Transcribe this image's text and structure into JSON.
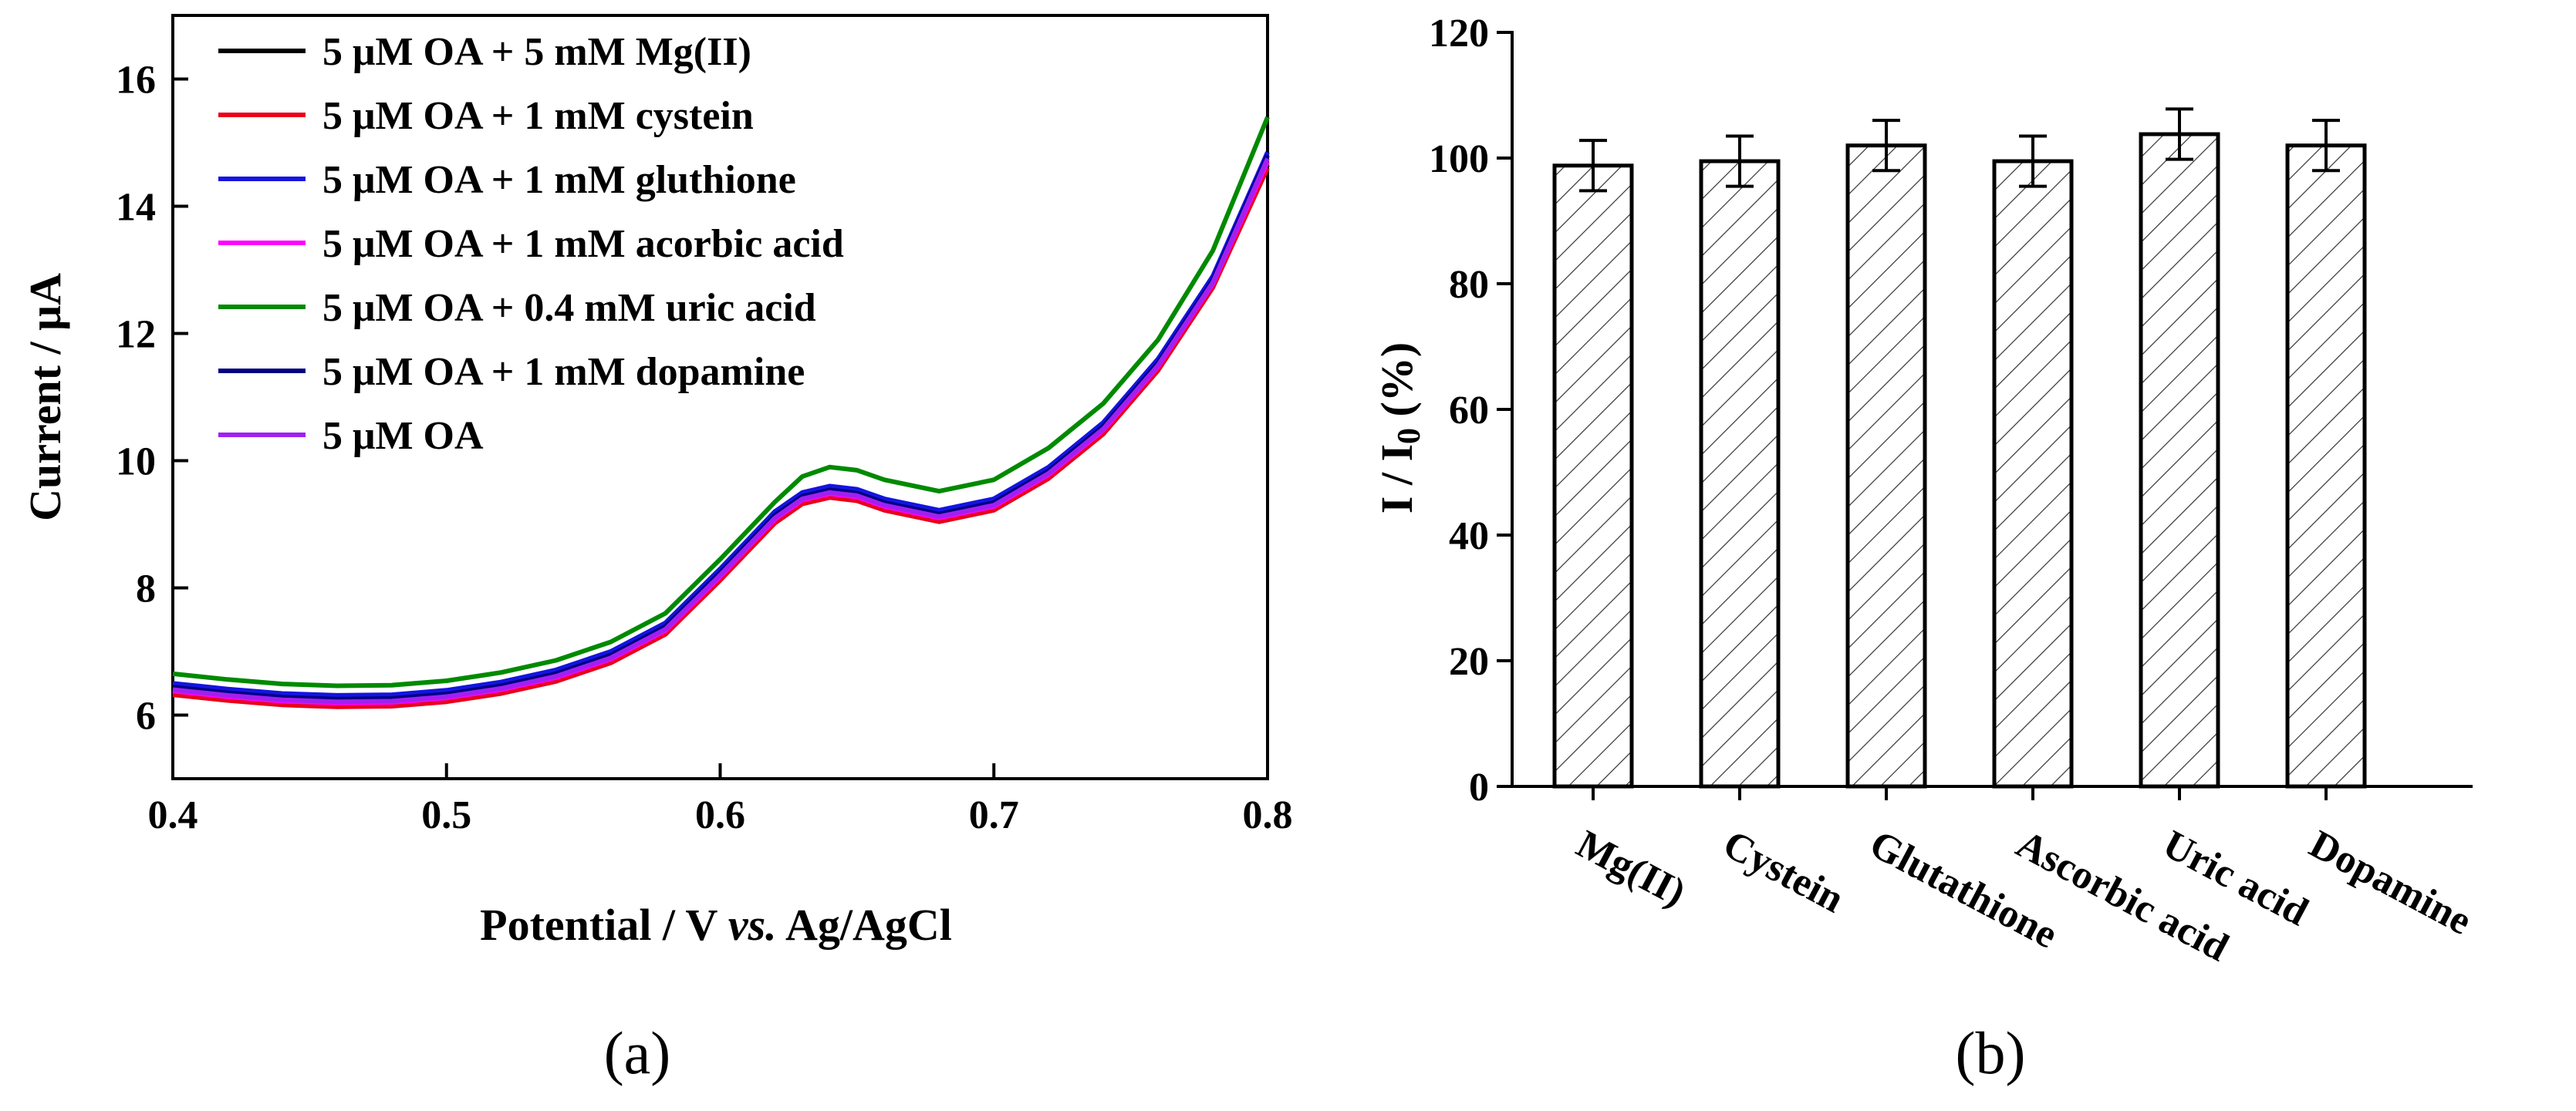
{
  "chart_data": [
    {
      "panel": "(a)",
      "type": "line",
      "xlabel_parts": [
        "Potential / V ",
        "vs.",
        " Ag/AgCl"
      ],
      "ylabel": "Current / μA",
      "xlim": [
        0.4,
        0.8
      ],
      "ylim": [
        5,
        17
      ],
      "xticks": [
        0.4,
        0.5,
        0.6,
        0.7,
        0.8
      ],
      "xtick_labels": [
        "0.4",
        "0.5",
        "0.6",
        "0.7",
        "0.8"
      ],
      "yticks": [
        6,
        8,
        10,
        12,
        14,
        16
      ],
      "ytick_labels": [
        "6",
        "8",
        "10",
        "12",
        "14",
        "16"
      ],
      "legend_position": "top-left",
      "x": [
        0.4,
        0.42,
        0.44,
        0.46,
        0.48,
        0.5,
        0.52,
        0.54,
        0.56,
        0.58,
        0.6,
        0.62,
        0.63,
        0.64,
        0.65,
        0.66,
        0.68,
        0.7,
        0.72,
        0.74,
        0.76,
        0.78,
        0.8
      ],
      "series": [
        {
          "name": "5 μM OA + 5 mM Mg(II)",
          "color": "#000000",
          "values": [
            6.35,
            6.26,
            6.19,
            6.16,
            6.17,
            6.24,
            6.37,
            6.56,
            6.85,
            7.3,
            8.15,
            9.05,
            9.35,
            9.45,
            9.4,
            9.25,
            9.07,
            9.25,
            9.75,
            10.45,
            11.45,
            12.75,
            14.65
          ]
        },
        {
          "name": "5 μM OA + 1 mM cystein",
          "color": "#e8001c",
          "values": [
            6.32,
            6.23,
            6.16,
            6.13,
            6.14,
            6.21,
            6.34,
            6.53,
            6.82,
            7.27,
            8.12,
            9.02,
            9.32,
            9.42,
            9.37,
            9.22,
            9.04,
            9.22,
            9.72,
            10.42,
            11.42,
            12.72,
            14.6
          ]
        },
        {
          "name": "5 μM OA + 1 mM gluthione",
          "color": "#1414e0",
          "values": [
            6.5,
            6.41,
            6.34,
            6.31,
            6.32,
            6.39,
            6.52,
            6.71,
            7.0,
            7.45,
            8.3,
            9.2,
            9.5,
            9.6,
            9.55,
            9.4,
            9.22,
            9.4,
            9.9,
            10.6,
            11.6,
            12.9,
            14.85
          ]
        },
        {
          "name": "5 μM OA + 1 mM acorbic acid",
          "color": "#ff00ff",
          "values": [
            6.38,
            6.29,
            6.22,
            6.19,
            6.2,
            6.27,
            6.4,
            6.59,
            6.88,
            7.33,
            8.18,
            9.08,
            9.38,
            9.48,
            9.43,
            9.28,
            9.1,
            9.28,
            9.78,
            10.48,
            11.48,
            12.78,
            14.7
          ]
        },
        {
          "name": "5 μM OA + 0.4 mM uric acid",
          "color": "#008a00",
          "values": [
            6.65,
            6.56,
            6.49,
            6.46,
            6.47,
            6.54,
            6.67,
            6.86,
            7.15,
            7.6,
            8.45,
            9.35,
            9.75,
            9.9,
            9.85,
            9.7,
            9.52,
            9.7,
            10.2,
            10.9,
            11.9,
            13.3,
            15.4
          ]
        },
        {
          "name": "5 μM OA + 1 mM dopamine",
          "color": "#000080",
          "values": [
            6.44,
            6.35,
            6.28,
            6.25,
            6.26,
            6.33,
            6.46,
            6.65,
            6.94,
            7.39,
            8.24,
            9.14,
            9.44,
            9.54,
            9.49,
            9.34,
            9.16,
            9.34,
            9.84,
            10.54,
            11.54,
            12.84,
            14.8
          ]
        },
        {
          "name": "5 μM OA",
          "color": "#a020f0",
          "values": [
            6.4,
            6.31,
            6.24,
            6.21,
            6.22,
            6.29,
            6.42,
            6.61,
            6.9,
            7.35,
            8.2,
            9.1,
            9.4,
            9.5,
            9.45,
            9.3,
            9.12,
            9.3,
            9.8,
            10.5,
            11.5,
            12.8,
            14.75
          ]
        }
      ]
    },
    {
      "panel": "(b)",
      "type": "bar",
      "ylabel_parts": [
        "I / I",
        "0",
        " (%)"
      ],
      "ylim": [
        0,
        120
      ],
      "yticks": [
        0,
        20,
        40,
        60,
        80,
        100,
        120
      ],
      "ytick_labels": [
        "0",
        "20",
        "40",
        "60",
        "80",
        "100",
        "120"
      ],
      "categories": [
        "Mg(II)",
        "Cystein",
        "Glutathione",
        "Ascorbic acid",
        "Uric acid",
        "Dopamine"
      ],
      "values": [
        98.8,
        99.5,
        102.0,
        99.5,
        103.8,
        102.0
      ],
      "errors": [
        4.0,
        4.0,
        4.0,
        4.0,
        4.0,
        4.0
      ],
      "bar_pattern": "diagonal-hatch"
    }
  ]
}
